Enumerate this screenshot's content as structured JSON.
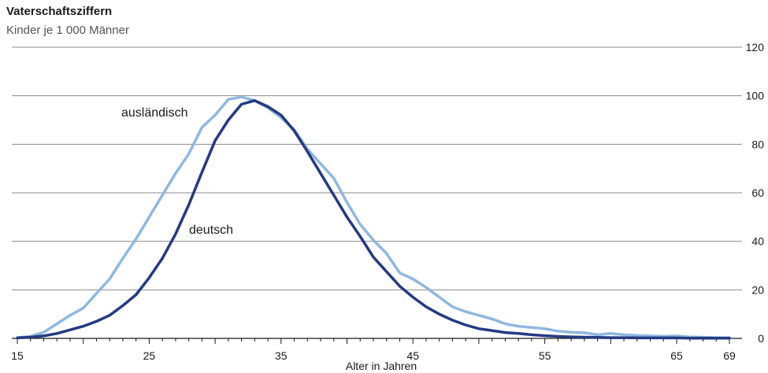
{
  "chart_data": {
    "type": "line",
    "title": "Vaterschaftsziffern",
    "subtitle": "Kinder je 1 000 Männer",
    "xlabel": "Alter in Jahren",
    "ylabel": "",
    "xlim": [
      15,
      69
    ],
    "ylim": [
      0,
      120
    ],
    "x_ticks": [
      15,
      25,
      35,
      45,
      55,
      65,
      69
    ],
    "y_ticks": [
      0,
      20,
      40,
      60,
      80,
      100,
      120
    ],
    "grid": "horizontal",
    "y_axis_position": "right",
    "x": [
      15,
      16,
      17,
      18,
      19,
      20,
      21,
      22,
      23,
      24,
      25,
      26,
      27,
      28,
      29,
      30,
      31,
      32,
      33,
      34,
      35,
      36,
      37,
      38,
      39,
      40,
      41,
      42,
      43,
      44,
      45,
      46,
      47,
      48,
      49,
      50,
      51,
      52,
      53,
      54,
      55,
      56,
      57,
      58,
      59,
      60,
      61,
      62,
      63,
      64,
      65,
      66,
      67,
      68,
      69
    ],
    "series": [
      {
        "name": "ausländisch",
        "color": "#8fb8e0",
        "values": [
          0.3,
          0.8,
          2.5,
          6,
          9.5,
          12.5,
          18.5,
          24.5,
          33,
          41,
          50,
          59,
          68,
          76,
          87,
          92,
          98.5,
          99.5,
          98,
          95,
          91,
          86,
          78,
          72,
          66,
          56,
          47,
          40.5,
          35,
          27,
          24.5,
          21,
          17,
          13,
          11,
          9.5,
          8,
          6,
          5,
          4.5,
          4,
          3,
          2.5,
          2.3,
          1.5,
          2,
          1.5,
          1.2,
          1,
          0.8,
          1,
          0.6,
          0.5,
          0.3,
          0.3
        ]
      },
      {
        "name": "deutsch",
        "color": "#243a82",
        "values": [
          0.2,
          0.5,
          1,
          2,
          3.5,
          5,
          7,
          9.5,
          13.5,
          18,
          25,
          33,
          43,
          55,
          68.5,
          81.5,
          90,
          96.5,
          98,
          95.5,
          92,
          85.5,
          77,
          68,
          59,
          50,
          42,
          33.5,
          27.5,
          21.5,
          17,
          13,
          10,
          7.5,
          5.5,
          4,
          3.2,
          2.4,
          2,
          1.5,
          1.1,
          0.8,
          0.6,
          0.5,
          0.4,
          0.3,
          0.3,
          0.2,
          0.2,
          0.2,
          0.2,
          0.1,
          0.1,
          0.1,
          0.1
        ]
      }
    ]
  }
}
